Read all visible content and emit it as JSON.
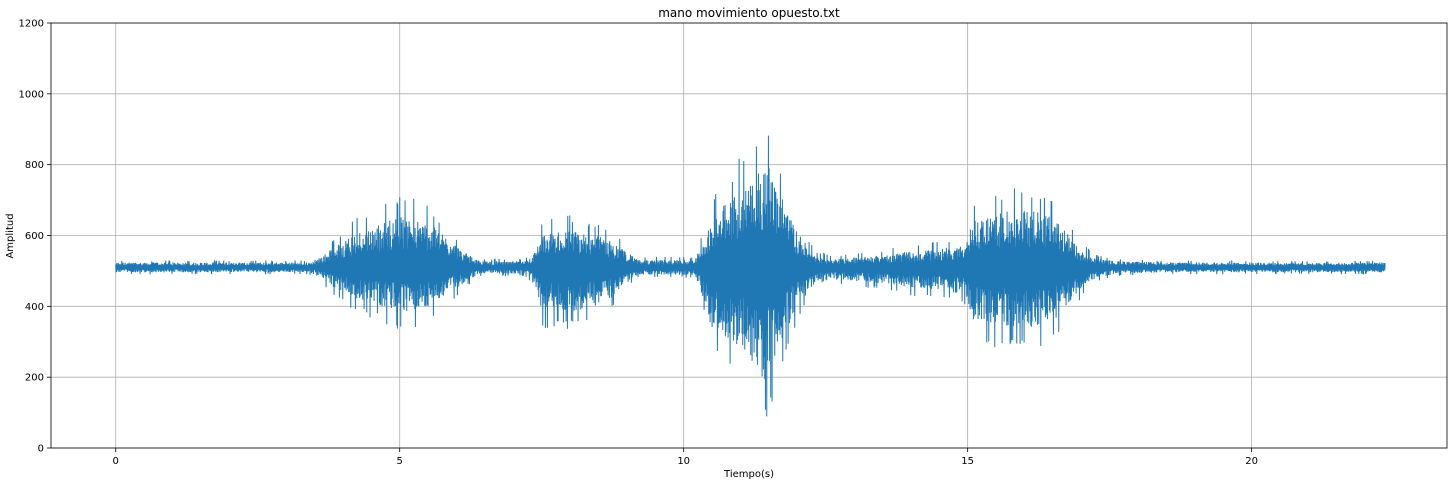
{
  "chart_data": {
    "type": "line",
    "title": "mano movimiento opuesto.txt",
    "xlabel": "Tiempo(s)",
    "ylabel": "Amplitud",
    "xlim": [
      -1.14,
      23.44
    ],
    "ylim": [
      0,
      1200
    ],
    "xticks": [
      0,
      5,
      10,
      15,
      20
    ],
    "yticks": [
      0,
      200,
      400,
      600,
      800,
      1000,
      1200
    ],
    "grid": true,
    "series": [
      {
        "color": "#1f77b4",
        "baseline": 510,
        "x_range": [
          0,
          22.35
        ],
        "envelope": {
          "x": [
            0.0,
            3.4,
            3.6,
            3.9,
            4.2,
            4.6,
            5.0,
            5.5,
            5.9,
            6.15,
            6.4,
            7.2,
            7.35,
            7.5,
            7.9,
            8.3,
            8.7,
            8.95,
            9.2,
            10.2,
            10.35,
            10.5,
            10.9,
            11.2,
            11.45,
            11.7,
            12.0,
            12.3,
            12.6,
            13.0,
            13.5,
            14.0,
            14.5,
            14.95,
            15.1,
            15.4,
            15.8,
            16.2,
            16.6,
            16.9,
            17.2,
            17.6,
            18.5,
            20.0,
            21.5,
            22.35
          ],
          "high": [
            530,
            530,
            550,
            600,
            650,
            680,
            720,
            690,
            620,
            570,
            535,
            535,
            560,
            640,
            660,
            650,
            620,
            580,
            540,
            540,
            620,
            720,
            800,
            880,
            950,
            820,
            650,
            560,
            545,
            550,
            560,
            575,
            585,
            600,
            700,
            720,
            740,
            740,
            700,
            600,
            550,
            535,
            530,
            530,
            528,
            530
          ],
          "low": [
            490,
            490,
            470,
            420,
            380,
            360,
            330,
            340,
            410,
            450,
            485,
            485,
            460,
            340,
            330,
            340,
            380,
            440,
            480,
            480,
            380,
            260,
            200,
            120,
            50,
            200,
            350,
            440,
            460,
            455,
            445,
            430,
            420,
            400,
            300,
            280,
            270,
            270,
            310,
            400,
            460,
            485,
            490,
            490,
            490,
            490
          ]
        }
      }
    ]
  }
}
